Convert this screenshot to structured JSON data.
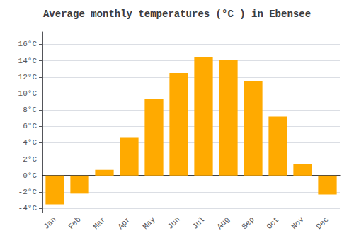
{
  "chart_data": {
    "type": "bar",
    "title": "Average monthly temperatures (°C ) in Ebensee",
    "categories": [
      "Jan",
      "Feb",
      "Mar",
      "Apr",
      "May",
      "Jun",
      "Jul",
      "Aug",
      "Sep",
      "Oct",
      "Nov",
      "Dec"
    ],
    "values": [
      -3.5,
      -2.2,
      0.7,
      4.6,
      9.3,
      12.5,
      14.4,
      14.1,
      11.5,
      7.2,
      1.4,
      -2.3
    ],
    "color": "#FFAA00",
    "ylim": [
      -4.5,
      17.5
    ],
    "yticks": [
      {
        "value": -4,
        "label": "-4°C"
      },
      {
        "value": -2,
        "label": "-2°C"
      },
      {
        "value": 0,
        "label": "0°C"
      },
      {
        "value": 2,
        "label": "2°C"
      },
      {
        "value": 4,
        "label": "4°C"
      },
      {
        "value": 6,
        "label": "6°C"
      },
      {
        "value": 8,
        "label": "8°C"
      },
      {
        "value": 10,
        "label": "10°C"
      },
      {
        "value": 12,
        "label": "12°C"
      },
      {
        "value": 14,
        "label": "14°C"
      },
      {
        "value": 16,
        "label": "16°C"
      }
    ],
    "grid": true
  }
}
